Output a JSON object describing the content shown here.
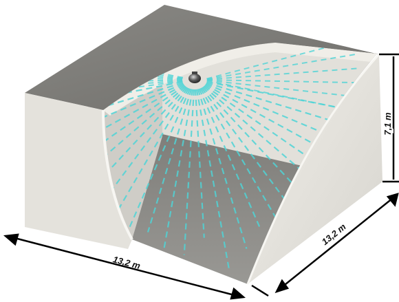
{
  "diagram": {
    "subject": "ceiling-mounted sensor coverage in a room section",
    "dimensions": {
      "width": "13,2 m",
      "depth": "13,2 m",
      "height": "7,1 m"
    },
    "colors": {
      "top_face": "#7b7a76",
      "front_wall": "#e4e2dc",
      "right_wall": "#e8e6e0",
      "floor": "#8e8d89",
      "back_wall": "#e2e0da",
      "beams": "#4fd4d6",
      "sensor": "#3a3a3a",
      "dimension_lines": "#000000"
    },
    "sensor": {
      "name": "ceiling-sensor",
      "icon": "dome-camera-icon"
    }
  }
}
